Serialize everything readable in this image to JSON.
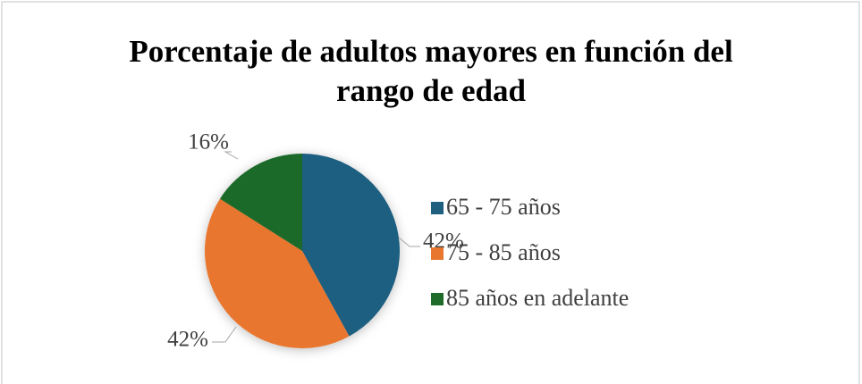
{
  "chart_data": {
    "type": "pie",
    "title": "Porcentaje de adultos mayores en función del rango de edad",
    "categories": [
      "65 - 75 años",
      "75 - 85 años",
      "85 años en adelante"
    ],
    "values": [
      42,
      42,
      16
    ],
    "value_labels": [
      "42%",
      "42%",
      "16%"
    ],
    "colors": [
      "#1f5f80",
      "#e8762f",
      "#1e6b2a"
    ],
    "legend": "right"
  }
}
